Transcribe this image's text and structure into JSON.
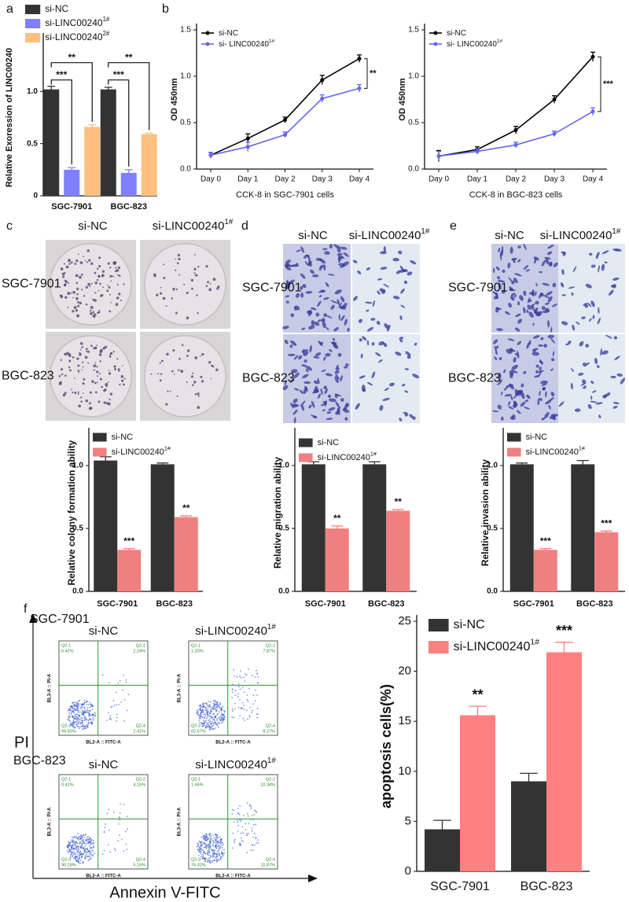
{
  "chart_data": [
    {
      "type": "bar",
      "ylabel": "Relative Exoression of LINC00240",
      "categories": [
        "SGC-7901",
        "BGC-823"
      ],
      "series": [
        {
          "name": "si-NC",
          "color": "#333333",
          "values": [
            1.02,
            1.02
          ],
          "errors": [
            0.03,
            0.02
          ]
        },
        {
          "name": "si-LINC00240",
          "name_sup": "1#",
          "color": "#8080ff",
          "values": [
            0.25,
            0.22
          ],
          "errors": [
            0.02,
            0.03
          ],
          "stars": [
            "***",
            "***"
          ]
        },
        {
          "name": "si-LINC00240",
          "name_sup": "2#",
          "color": "#ffbf80",
          "values": [
            0.66,
            0.59
          ],
          "errors": [
            0.02,
            0.01
          ],
          "stars": [
            "**",
            "**"
          ]
        }
      ],
      "ylim": [
        0,
        1.5
      ],
      "yticks": [
        0,
        0.5,
        {
          "value": 1,
          "label": "1.0"
        }
      ]
    },
    {
      "type": "line",
      "ylabel": "OD 450nm",
      "xlabel": "CCK-8 in SGC-7901 cells",
      "categories": [
        "Day 0",
        "Day 1",
        "Day 2",
        "Day 3",
        "Day 4"
      ],
      "series": [
        {
          "name": "si-NC",
          "color": "#000000",
          "values": [
            0.15,
            0.33,
            0.53,
            0.96,
            1.19
          ],
          "errors": [
            0.03,
            0.05,
            0.03,
            0.05,
            0.04
          ]
        },
        {
          "name": "si- LINC00240",
          "name_sup": "1#",
          "color": "#6666ee",
          "values": [
            0.15,
            0.24,
            0.37,
            0.76,
            0.87
          ],
          "errors": [
            0.03,
            0.05,
            0.03,
            0.04,
            0.04
          ]
        }
      ],
      "annotation": "**",
      "ylim": [
        0,
        1.5
      ],
      "yticks": [
        {
          "value": 0,
          "label": "0.0"
        },
        0.5,
        {
          "value": 1,
          "label": "1.0"
        },
        1.5
      ]
    },
    {
      "type": "line",
      "ylabel": "OD 450nm",
      "xlabel": "CCK-8 in BGC-823 cells",
      "categories": [
        "Day 0",
        "Day 1",
        "Day 2",
        "Day 3",
        "Day 4"
      ],
      "series": [
        {
          "name": "si-NC",
          "color": "#000000",
          "values": [
            0.14,
            0.21,
            0.42,
            0.75,
            1.21
          ],
          "errors": [
            0.06,
            0.03,
            0.04,
            0.04,
            0.05
          ]
        },
        {
          "name": "si- LINC00240",
          "name_sup": "1#",
          "color": "#6666ee",
          "values": [
            0.14,
            0.19,
            0.26,
            0.38,
            0.62
          ],
          "errors": [
            0.05,
            0.03,
            0.03,
            0.03,
            0.04
          ]
        }
      ],
      "annotation": "***",
      "ylim": [
        0,
        1.5
      ],
      "yticks": [
        {
          "value": 0,
          "label": "0.0"
        },
        0.5,
        {
          "value": 1,
          "label": "1.0"
        },
        1.5
      ]
    },
    {
      "type": "bar",
      "ylabel": "Relative colony formation ability",
      "categories": [
        "SGC-7901",
        "BGC-823"
      ],
      "series": [
        {
          "name": "si-NC",
          "color": "#333333",
          "values": [
            1.04,
            1.01
          ],
          "errors": [
            0.03,
            0.01
          ]
        },
        {
          "name": "si-LINC00240",
          "name_sup": "1#",
          "color": "#f08080",
          "values": [
            0.33,
            0.59
          ],
          "errors": [
            0.01,
            0.01
          ],
          "stars": [
            "***",
            "**"
          ]
        }
      ],
      "ylim": [
        0,
        1.25
      ],
      "yticks": [
        {
          "value": 0,
          "label": "0.0"
        },
        0.5,
        {
          "value": 1,
          "label": "1.0"
        }
      ]
    },
    {
      "type": "bar",
      "ylabel": "Relative migration ability",
      "categories": [
        "SGC-7901",
        "BGC-823"
      ],
      "series": [
        {
          "name": "si-NC",
          "color": "#333333",
          "values": [
            1.01,
            1.01
          ],
          "errors": [
            0.02,
            0.02
          ]
        },
        {
          "name": "si-LINC00240",
          "name_sup": "1#",
          "color": "#f08080",
          "values": [
            0.5,
            0.64
          ],
          "errors": [
            0.02,
            0.01
          ],
          "stars": [
            "**",
            "**"
          ]
        }
      ],
      "ylim": [
        0,
        1.25
      ],
      "yticks": [
        {
          "value": 0,
          "label": "0.0"
        },
        0.5,
        {
          "value": 1,
          "label": "1.0"
        }
      ]
    },
    {
      "type": "bar",
      "ylabel": "Relative invasion ability",
      "categories": [
        "SGC-7901",
        "BGC-823"
      ],
      "series": [
        {
          "name": "si-NC",
          "color": "#333333",
          "values": [
            1.01,
            1.01
          ],
          "errors": [
            0.01,
            0.03
          ]
        },
        {
          "name": "si-LINC00240",
          "name_sup": "1#",
          "color": "#f08080",
          "values": [
            0.33,
            0.47
          ],
          "errors": [
            0.01,
            0.01
          ],
          "stars": [
            "***",
            "***"
          ]
        }
      ],
      "ylim": [
        0,
        1.25
      ],
      "yticks": [
        {
          "value": 0,
          "label": "0.0"
        },
        0.5,
        {
          "value": 1,
          "label": "1.0"
        }
      ]
    },
    {
      "type": "bar",
      "ylabel": "apoptosis cells(%)",
      "categories": [
        "SGC-7901",
        "BGC-823"
      ],
      "series": [
        {
          "name": "si-NC",
          "color": "#333333",
          "values": [
            4.2,
            9.0
          ],
          "errors": [
            0.9,
            0.8
          ]
        },
        {
          "name": "si-LINC00240",
          "name_sup": "1#",
          "color": "#ff8080",
          "values": [
            15.6,
            21.9
          ],
          "errors": [
            0.9,
            1.0
          ],
          "stars": [
            "**",
            "***"
          ]
        }
      ],
      "ylim": [
        0,
        25
      ],
      "yticks": [
        0,
        5,
        10,
        15,
        20,
        25
      ]
    }
  ],
  "panel_letters": [
    "a",
    "b",
    "c",
    "d",
    "e",
    "f"
  ],
  "image_panels": [
    {
      "col_labels": [
        "si-NC",
        "si-LINC00240"
      ],
      "col_sup": "1#",
      "row_labels": [
        "SGC-7901",
        "BGC-823"
      ]
    },
    {
      "col_labels": [
        "si-NC",
        "si-LINC00240"
      ],
      "col_sup": "1#",
      "row_labels": [
        "SGC-7901",
        "BGC-823"
      ]
    },
    {
      "col_labels": [
        "si-NC",
        "si-LINC00240"
      ],
      "col_sup": "1#",
      "row_labels": [
        "SGC-7901",
        "BGC-823"
      ]
    }
  ],
  "flow": {
    "row_labels": [
      "SGC-7901",
      "BGC-823"
    ],
    "col_labels": [
      "si-NC",
      "si-LINC00240"
    ],
    "col_sup": "1#",
    "y_label": "PI",
    "x_label": "Annexin V-FITC",
    "plot_x_axis": "BL2-A :: FITC-A",
    "plot_y_axis": "BL3-A :: PI-A",
    "quadrant_names": [
      "Q2-1",
      "Q2-2",
      "Q2-3",
      "Q2-4"
    ],
    "plots": [
      {
        "quadrants": [
          "0.42%",
          "2.24%",
          "94.93%",
          "2.41%"
        ]
      },
      {
        "quadrants": [
          "1.20%",
          "7.87%",
          "82.67%",
          "8.27%"
        ]
      },
      {
        "quadrants": [
          "0.41%",
          "4.15%",
          "90.28%",
          "5.16%"
        ]
      },
      {
        "quadrants": [
          "1.46%",
          "10.34%",
          "76.32%",
          "11.87%"
        ]
      }
    ]
  }
}
